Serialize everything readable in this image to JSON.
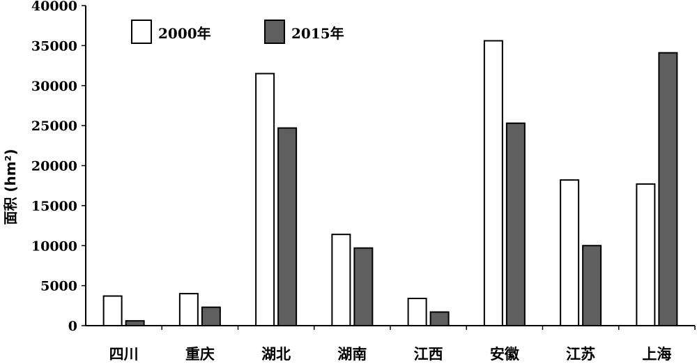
{
  "chart_data": {
    "type": "bar",
    "categories": [
      "四川",
      "重庆",
      "湖北",
      "湖南",
      "江西",
      "安徽",
      "江苏",
      "上海"
    ],
    "series": [
      {
        "name": "2000年",
        "values": [
          3700,
          4000,
          31500,
          11400,
          3400,
          35600,
          18200,
          17700
        ],
        "color": "#ffffff"
      },
      {
        "name": "2015年",
        "values": [
          600,
          2300,
          24700,
          9700,
          1700,
          25300,
          10000,
          34100
        ],
        "color": "#5f5f5f"
      }
    ],
    "ylabel": "面积 (hm²)",
    "ylim": [
      0,
      40000
    ],
    "yticks": [
      "0",
      "5000",
      "10000",
      "15000",
      "20000",
      "25000",
      "30000",
      "35000",
      "40000"
    ],
    "ytick_values": [
      0,
      5000,
      10000,
      15000,
      20000,
      25000,
      30000,
      35000,
      40000
    ],
    "legend_position": "top-left",
    "grid": false
  }
}
